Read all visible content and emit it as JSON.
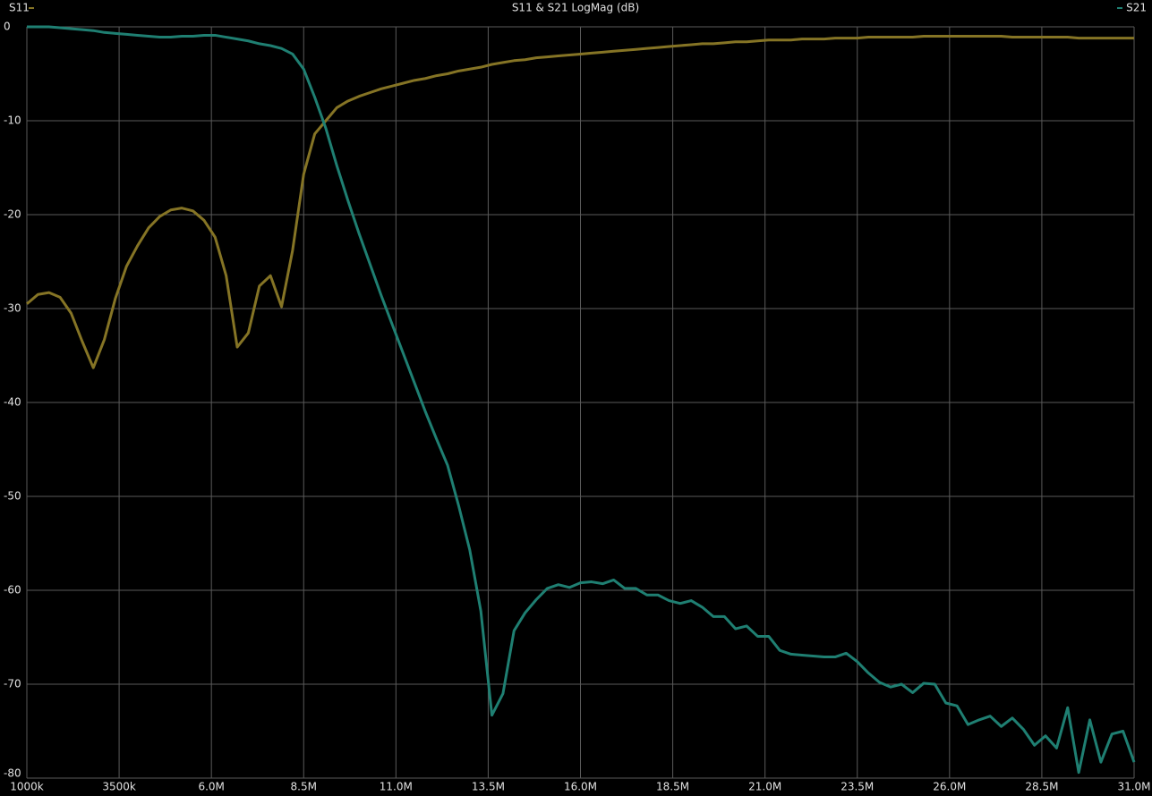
{
  "chart_data": {
    "type": "line",
    "title": "S11 & S21 LogMag (dB)",
    "x": [
      1000000,
      1300000,
      1600000,
      1900000,
      2200000,
      2500000,
      2800000,
      3100000,
      3400000,
      3700000,
      4000000,
      4300000,
      4600000,
      4900000,
      5200000,
      5500000,
      5800000,
      6100000,
      6400000,
      6700000,
      7000000,
      7300000,
      7600000,
      7900000,
      8200000,
      8500000,
      8800000,
      9100000,
      9400000,
      9700000,
      10000000,
      10300000,
      10600000,
      10900000,
      11200000,
      11500000,
      11800000,
      12100000,
      12400000,
      12700000,
      13000000,
      13300000,
      13600000,
      13900000,
      14200000,
      14500000,
      14800000,
      15100000,
      15400000,
      15700000,
      16000000,
      16300000,
      16600000,
      16900000,
      17200000,
      17500000,
      17800000,
      18100000,
      18400000,
      18700000,
      19000000,
      19300000,
      19600000,
      19900000,
      20200000,
      20500000,
      20800000,
      21100000,
      21400000,
      21700000,
      22000000,
      22300000,
      22600000,
      22900000,
      23200000,
      23500000,
      23800000,
      24100000,
      24400000,
      24700000,
      25000000,
      25300000,
      25600000,
      25900000,
      26200000,
      26500000,
      26800000,
      27100000,
      27400000,
      27700000,
      28000000,
      28300000,
      28600000,
      28900000,
      29200000,
      29500000,
      29800000,
      30100000,
      30400000,
      30700000,
      31000000
    ],
    "series": [
      {
        "name": "S11",
        "color": "#857425",
        "values": [
          -29.5,
          -28.5,
          -28.3,
          -28.8,
          -30.5,
          -33.5,
          -36.3,
          -33.3,
          -28.9,
          -25.5,
          -23.3,
          -21.4,
          -20.2,
          -19.5,
          -19.3,
          -19.6,
          -20.6,
          -22.4,
          -26.5,
          -34.1,
          -32.6,
          -27.6,
          -26.5,
          -29.8,
          -23.8,
          -15.7,
          -11.4,
          -10.0,
          -8.6,
          -7.9,
          -7.4,
          -7.0,
          -6.6,
          -6.3,
          -6.0,
          -5.7,
          -5.5,
          -5.2,
          -5.0,
          -4.7,
          -4.5,
          -4.3,
          -4.0,
          -3.8,
          -3.6,
          -3.5,
          -3.3,
          -3.2,
          -3.1,
          -3.0,
          -2.9,
          -2.8,
          -2.7,
          -2.6,
          -2.5,
          -2.4,
          -2.3,
          -2.2,
          -2.1,
          -2.0,
          -1.9,
          -1.8,
          -1.8,
          -1.7,
          -1.6,
          -1.6,
          -1.5,
          -1.4,
          -1.4,
          -1.4,
          -1.3,
          -1.3,
          -1.3,
          -1.2,
          -1.2,
          -1.2,
          -1.1,
          -1.1,
          -1.1,
          -1.1,
          -1.1,
          -1.0,
          -1.0,
          -1.0,
          -1.0,
          -1.0,
          -1.0,
          -1.0,
          -1.0,
          -1.1,
          -1.1,
          -1.1,
          -1.1,
          -1.1,
          -1.1,
          -1.2,
          -1.2,
          -1.2,
          -1.2,
          -1.2,
          -1.2
        ]
      },
      {
        "name": "S21",
        "color": "#1f7f72",
        "values": [
          0,
          0,
          0,
          -0.1,
          -0.2,
          -0.3,
          -0.4,
          -0.6,
          -0.7,
          -0.8,
          -0.9,
          -1.0,
          -1.1,
          -1.1,
          -1.0,
          -1.0,
          -0.9,
          -0.9,
          -1.1,
          -1.3,
          -1.5,
          -1.8,
          -2.0,
          -2.3,
          -2.9,
          -4.5,
          -7.5,
          -10.8,
          -14.8,
          -18.5,
          -22.0,
          -25.3,
          -28.6,
          -31.7,
          -34.8,
          -37.9,
          -41.0,
          -43.9,
          -46.7,
          -51.0,
          -55.7,
          -62.2,
          -73.3,
          -71.0,
          -64.3,
          -62.4,
          -61.0,
          -59.8,
          -59.4,
          -59.7,
          -59.2,
          -59.1,
          -59.3,
          -58.9,
          -59.8,
          -59.8,
          -60.5,
          -60.5,
          -61.1,
          -61.4,
          -61.1,
          -61.8,
          -62.8,
          -62.8,
          -64.1,
          -63.8,
          -64.9,
          -64.9,
          -66.4,
          -66.8,
          -66.9,
          -67.0,
          -67.1,
          -67.1,
          -66.7,
          -67.6,
          -68.8,
          -69.8,
          -70.3,
          -70.0,
          -70.9,
          -69.9,
          -70.0,
          -72.0,
          -72.3,
          -74.3,
          -73.8,
          -73.4,
          -74.5,
          -73.6,
          -74.8,
          -76.5,
          -75.5,
          -76.8,
          -72.5,
          -79.4,
          -73.8,
          -78.3,
          -75.3,
          -75.0,
          -78.3
        ]
      }
    ],
    "xlim": [
      1000000,
      31000000
    ],
    "ylim": [
      -80,
      0
    ],
    "xticks": [
      {
        "value": 1000000,
        "label": "1000k"
      },
      {
        "value": 3500000,
        "label": "3500k"
      },
      {
        "value": 6000000,
        "label": "6.0M"
      },
      {
        "value": 8500000,
        "label": "8.5M"
      },
      {
        "value": 11000000,
        "label": "11.0M"
      },
      {
        "value": 13500000,
        "label": "13.5M"
      },
      {
        "value": 16000000,
        "label": "16.0M"
      },
      {
        "value": 18500000,
        "label": "18.5M"
      },
      {
        "value": 21000000,
        "label": "21.0M"
      },
      {
        "value": 23500000,
        "label": "23.5M"
      },
      {
        "value": 26000000,
        "label": "26.0M"
      },
      {
        "value": 28500000,
        "label": "28.5M"
      },
      {
        "value": 31000000,
        "label": "31.0M"
      }
    ],
    "yticks": [
      0,
      -10,
      -20,
      -30,
      -40,
      -50,
      -60,
      -70,
      -80
    ],
    "grid": true
  }
}
